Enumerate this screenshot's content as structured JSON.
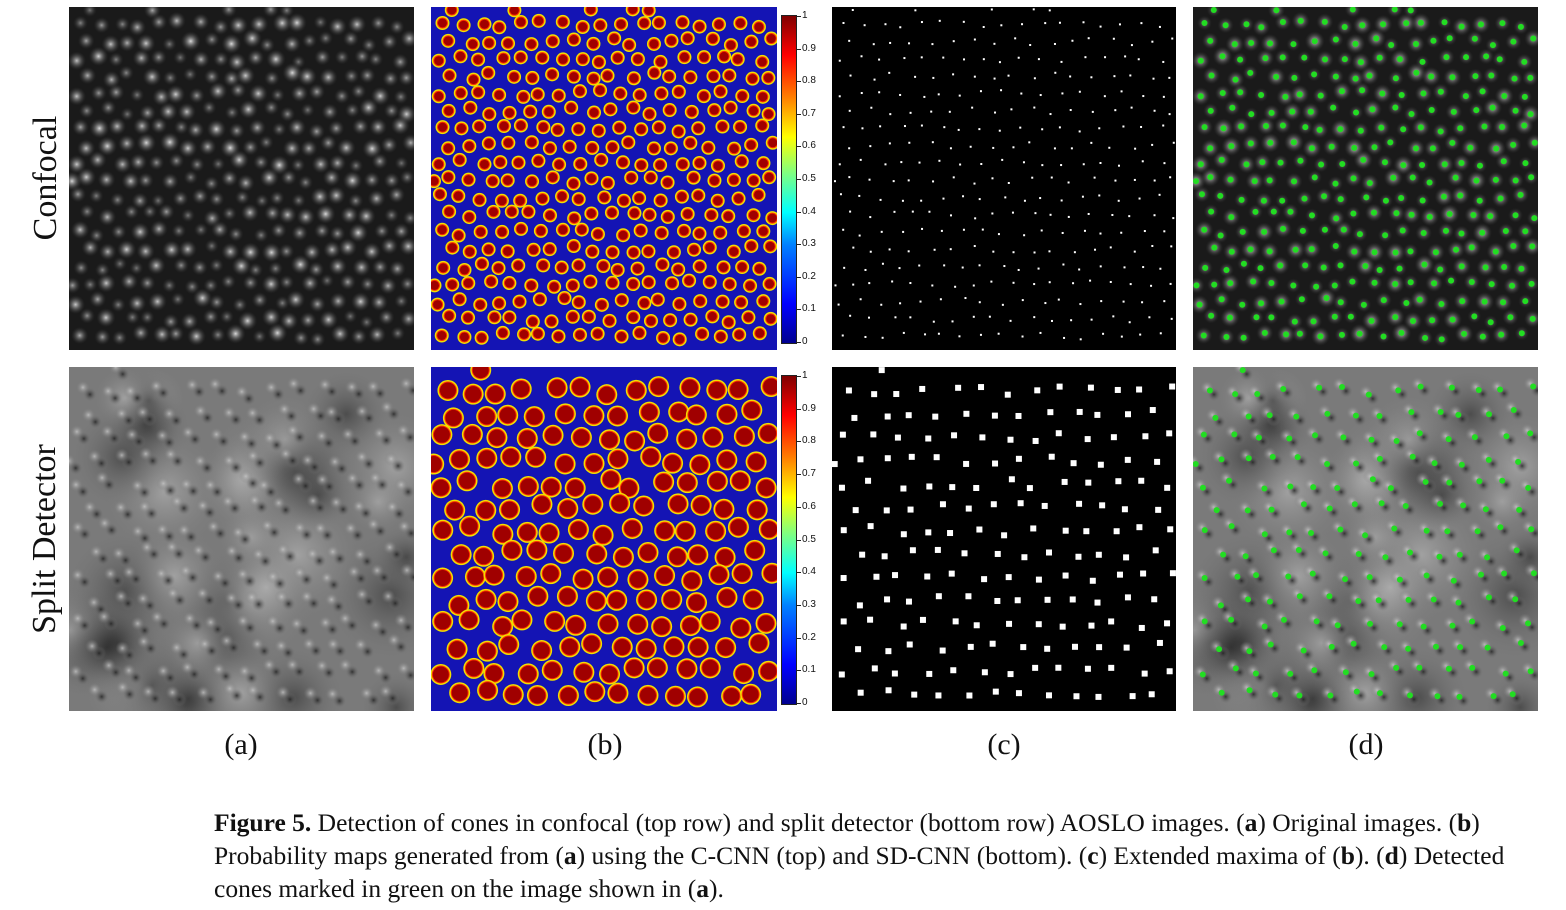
{
  "row_labels": {
    "top": "Confocal",
    "bottom": "Split Detector"
  },
  "panel_labels": [
    "(a)",
    "(b)",
    "(c)",
    "(d)"
  ],
  "colorbar_ticks": [
    "1",
    "0.9",
    "0.8",
    "0.7",
    "0.6",
    "0.5",
    "0.4",
    "0.3",
    "0.2",
    "0.1",
    "0"
  ],
  "caption": {
    "figure_label": "Figure 5.",
    "t1": " Detection of cones in confocal (top row) and split detector (bottom row) AOSLO images. (",
    "a1": "a",
    "t2": ") Original images. (",
    "b1": "b",
    "t3": ") Probability maps generated from (",
    "a2": "a",
    "t4": ") using the C-CNN (top) and SD-CNN (bottom). (",
    "c1": "c",
    "t5": ") Extended maxima of (",
    "b2": "b",
    "t6": "). (",
    "d1": "d",
    "t7": ") Detected cones marked in green on the image shown in (",
    "a3": "a",
    "t8": ")."
  },
  "colors": {
    "prob_bg": "#1414b4",
    "prob_blob": "#a00000",
    "marker": "#22dd22"
  }
}
